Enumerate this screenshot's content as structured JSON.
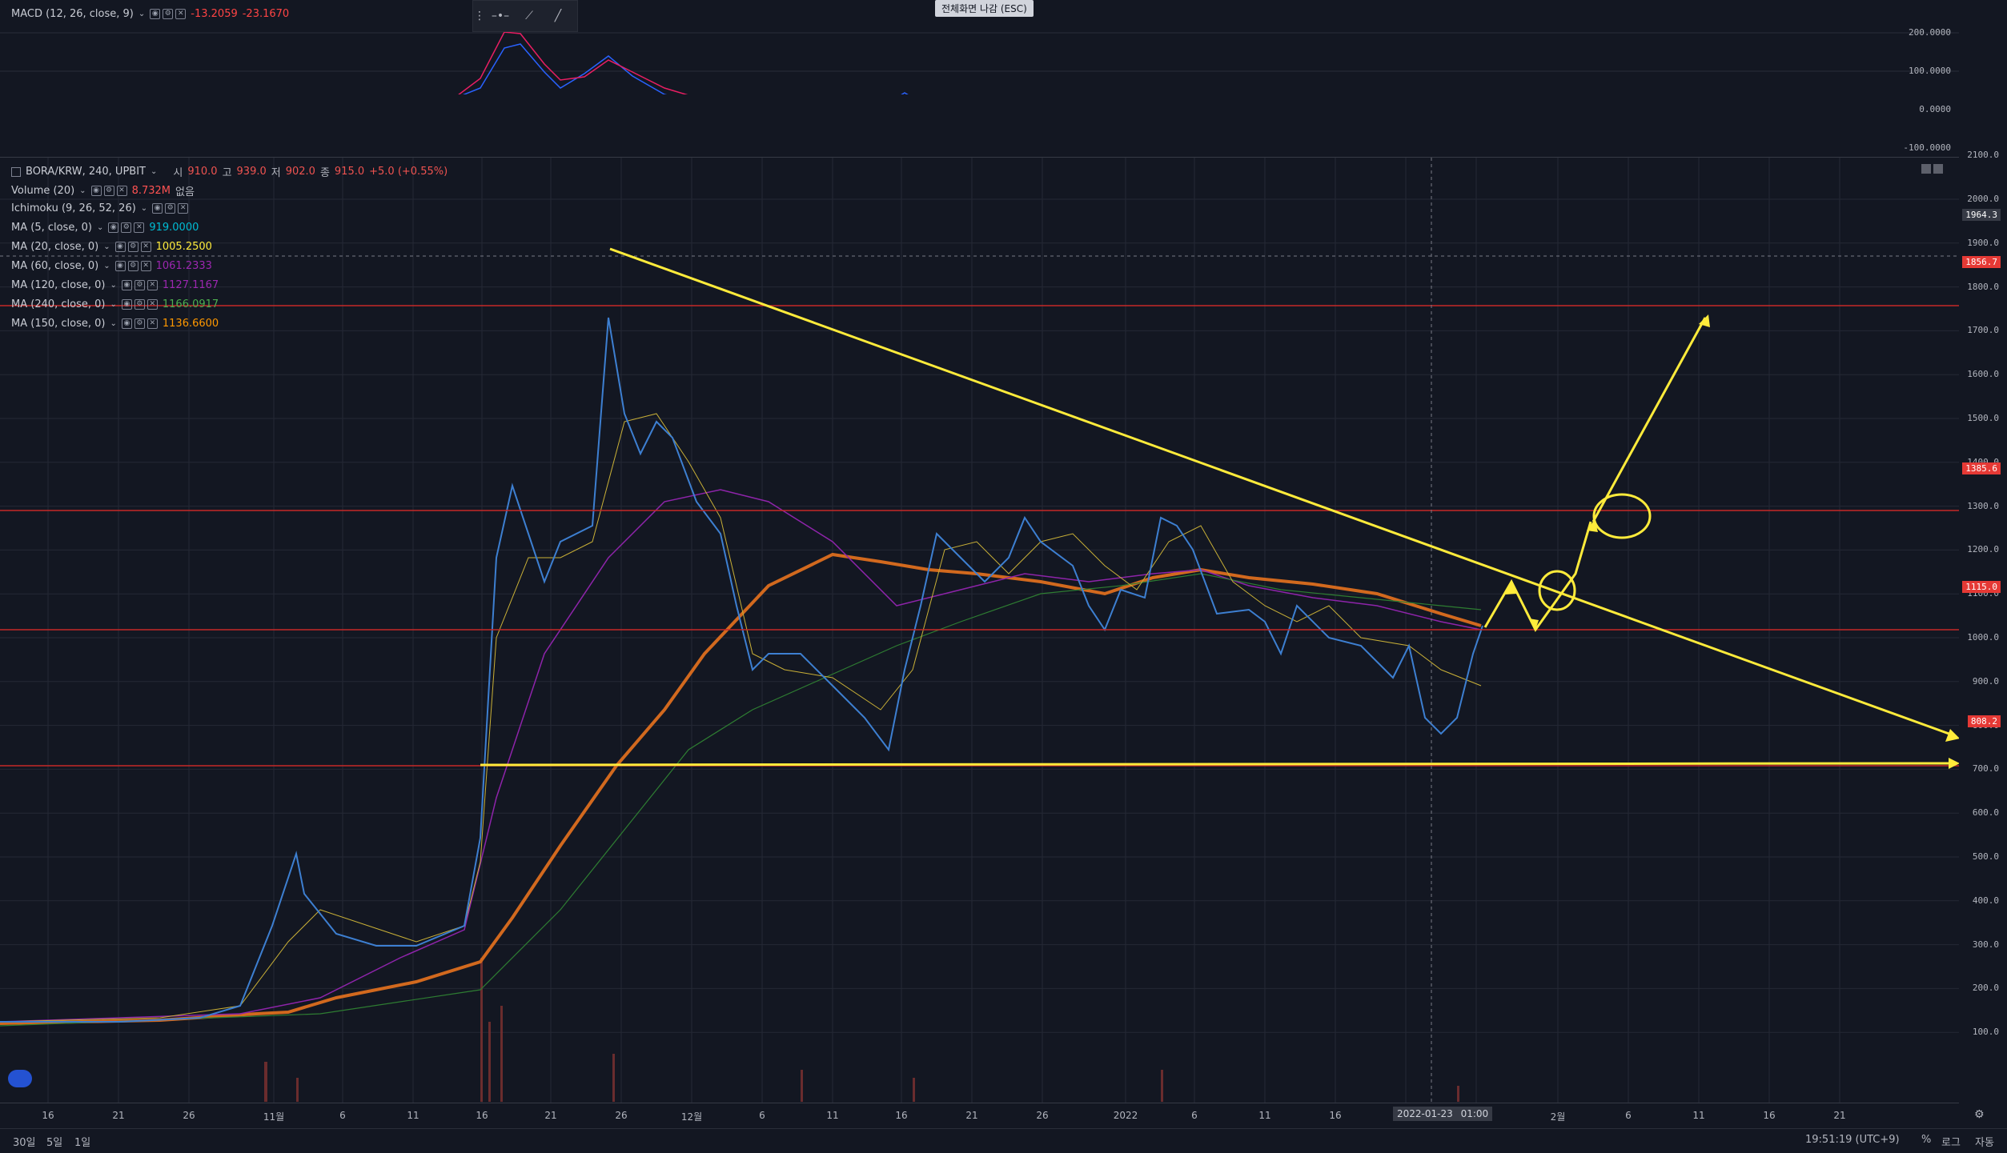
{
  "macd": {
    "title": "MACD (12, 26, close, 9)",
    "values": [
      "-13.2059",
      "-23.1670"
    ],
    "value_colors": [
      "#ff4444",
      "#ff4444"
    ],
    "scale": [
      "200.0000",
      "100.0000",
      "0.0000",
      "-100.0000"
    ]
  },
  "toolbar": {
    "esc_tip": "전체화면 나감 (ESC)"
  },
  "symbol": {
    "title": "BORA/KRW, 240, UPBIT",
    "o_label": "시",
    "o": "910.0",
    "h_label": "고",
    "h": "939.0",
    "l_label": "저",
    "l": "902.0",
    "c_label": "종",
    "c": "915.0",
    "change": "+5.0 (+0.55%)"
  },
  "indicators": [
    {
      "name": "Volume (20)",
      "value": "8.732M",
      "extra": "없음",
      "color": "#ff5252"
    },
    {
      "name": "Ichimoku (9, 26, 52, 26)",
      "value": "",
      "extra": "",
      "color": "#5d606b"
    },
    {
      "name": "MA (5, close, 0)",
      "value": "919.0000",
      "extra": "",
      "color": "#00bcd4"
    },
    {
      "name": "MA (20, close, 0)",
      "value": "1005.2500",
      "extra": "",
      "color": "#ffeb3b"
    },
    {
      "name": "MA (60, close, 0)",
      "value": "1061.2333",
      "extra": "",
      "color": "#9c27b0"
    },
    {
      "name": "MA (120, close, 0)",
      "value": "1127.1167",
      "extra": "",
      "color": "#9c27b0"
    },
    {
      "name": "MA (240, close, 0)",
      "value": "1166.0917",
      "extra": "",
      "color": "#4caf50"
    },
    {
      "name": "MA (150, close, 0)",
      "value": "1136.6600",
      "extra": "",
      "color": "#ff9800"
    }
  ],
  "price_scale": [
    {
      "v": 2100,
      "label": "2100.0"
    },
    {
      "v": 2000,
      "label": "2000.0"
    },
    {
      "v": 1900,
      "label": "1900.0"
    },
    {
      "v": 1800,
      "label": "1800.0"
    },
    {
      "v": 1700,
      "label": "1700.0"
    },
    {
      "v": 1600,
      "label": "1600.0"
    },
    {
      "v": 1500,
      "label": "1500.0"
    },
    {
      "v": 1400,
      "label": "1400.0"
    },
    {
      "v": 1300,
      "label": "1300.0"
    },
    {
      "v": 1200,
      "label": "1200.0"
    },
    {
      "v": 1100,
      "label": "1100.0"
    },
    {
      "v": 1000,
      "label": "1000.0"
    },
    {
      "v": 900,
      "label": "900.0"
    },
    {
      "v": 800,
      "label": "800.0"
    },
    {
      "v": 700,
      "label": "700.0"
    },
    {
      "v": 600,
      "label": "600.0"
    },
    {
      "v": 500,
      "label": "500.0"
    },
    {
      "v": 400,
      "label": "400.0"
    },
    {
      "v": 300,
      "label": "300.0"
    },
    {
      "v": 200,
      "label": "200.0"
    },
    {
      "v": 100,
      "label": "100.0"
    }
  ],
  "price_tags": [
    {
      "v": 1964.3,
      "label": "1964.3",
      "bg": "#363a45"
    },
    {
      "v": 1856.7,
      "label": "1856.7",
      "bg": "#e53935"
    },
    {
      "v": 1385.6,
      "label": "1385.6",
      "bg": "#e53935"
    },
    {
      "v": 1115.0,
      "label": "1115.0",
      "bg": "#e53935"
    },
    {
      "v": 808.2,
      "label": "808.2",
      "bg": "#e53935"
    }
  ],
  "time_labels": [
    "16",
    "21",
    "26",
    "11월",
    "6",
    "11",
    "16",
    "21",
    "26",
    "12월",
    "6",
    "11",
    "16",
    "21",
    "26",
    "2022",
    "6",
    "11",
    "16",
    "21",
    "26",
    "2월",
    "6",
    "11",
    "16",
    "21"
  ],
  "crosshair_time": "2022-01-23",
  "crosshair_time2": "01:00",
  "bottom": {
    "ranges": [
      "30일",
      "5일",
      "1일"
    ],
    "clock": "19:51:19 (UTC+9)",
    "pct": "%",
    "log": "로그",
    "auto": "자동"
  }
}
